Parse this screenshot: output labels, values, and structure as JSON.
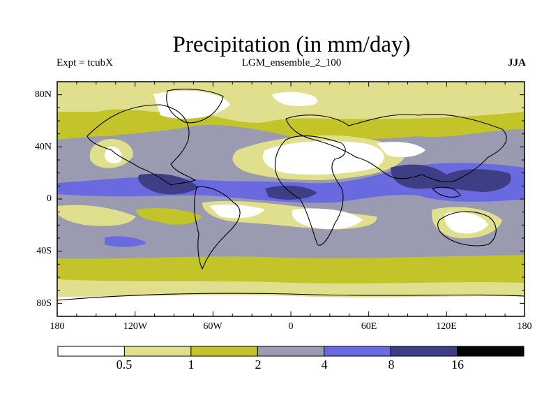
{
  "title": "Precipitation (in mm/day)",
  "subtitle_left": "Expt = tcubX",
  "subtitle_center": "LGM_ensemble_2_100",
  "subtitle_right": "JJA",
  "lat_ticks": [
    "80N",
    "40N",
    "0",
    "40S",
    "80S"
  ],
  "lon_ticks": [
    "180",
    "120W",
    "60W",
    "0",
    "60E",
    "120E",
    "180"
  ],
  "colorbar": {
    "levels": [
      "0.5",
      "1",
      "2",
      "4",
      "8",
      "16"
    ],
    "colors": [
      "#ffffff",
      "#dfdf8e",
      "#c3c32a",
      "#9a9ab0",
      "#6a6ae0",
      "#3e3e86",
      "#050505"
    ]
  }
}
